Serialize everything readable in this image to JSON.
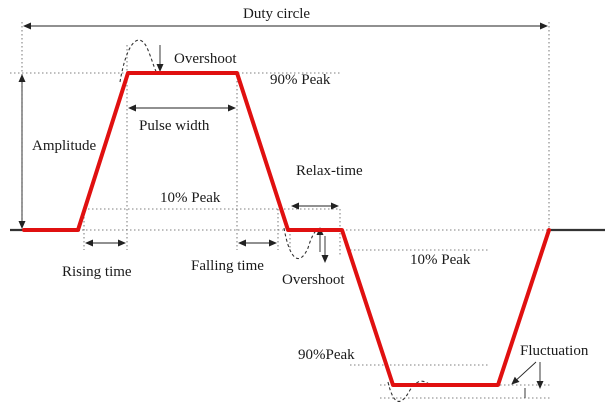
{
  "labels": {
    "duty_circle": "Duty circle",
    "overshoot_top": "Overshoot",
    "peak_90_top": "90% Peak",
    "amplitude": "Amplitude",
    "pulse_width": "Pulse width",
    "relax_time": "Relax-time",
    "peak_10_top": "10% Peak",
    "rising_time": "Rising time",
    "falling_time": "Falling time",
    "overshoot_bottom": "Overshoot",
    "peak_10_bottom": "10% Peak",
    "peak_90_bottom": "90%Peak",
    "fluctuation": "Fluctuation"
  },
  "colors": {
    "signal": "#e01010",
    "annotation": "#222222"
  }
}
